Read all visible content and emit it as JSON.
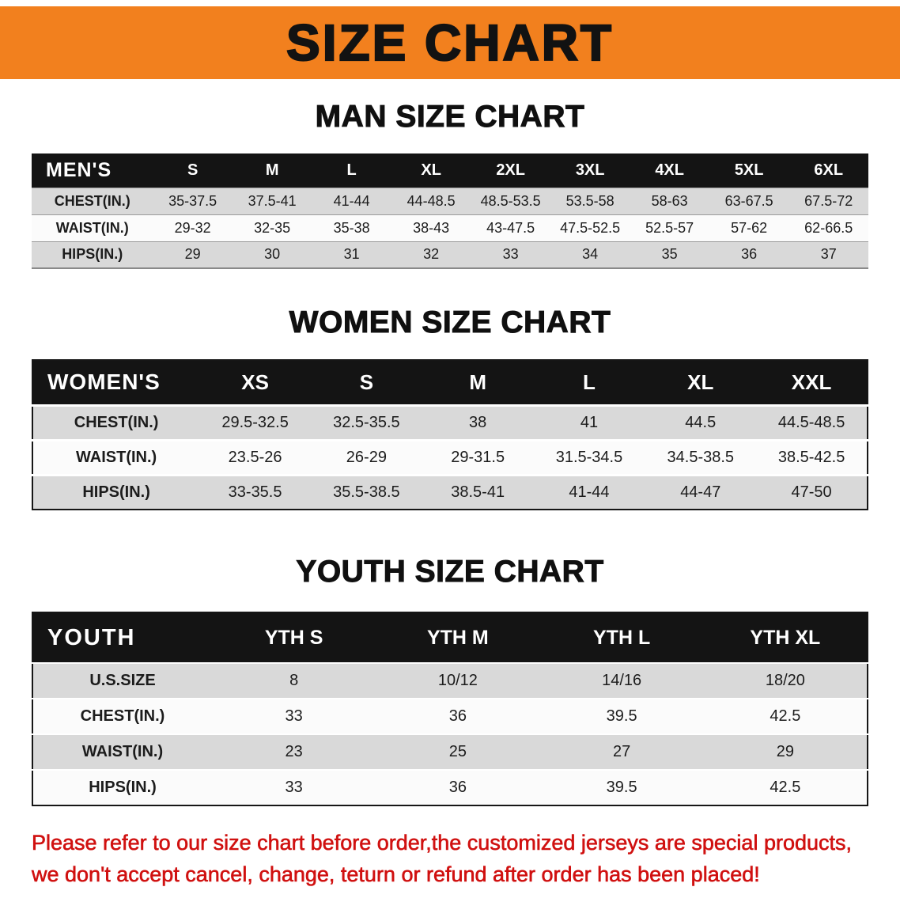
{
  "banner": {
    "title": "SIZE CHART",
    "bg_color": "#f2801e"
  },
  "sections": [
    {
      "id": "men",
      "heading": "MAN SIZE CHART",
      "header": [
        "MEN'S",
        "S",
        "M",
        "L",
        "XL",
        "2XL",
        "3XL",
        "4XL",
        "5XL",
        "6XL"
      ],
      "rows": [
        [
          "CHEST(IN.)",
          "35-37.5",
          "37.5-41",
          "41-44",
          "44-48.5",
          "48.5-53.5",
          "53.5-58",
          "58-63",
          "63-67.5",
          "67.5-72"
        ],
        [
          "WAIST(IN.)",
          "29-32",
          "32-35",
          "35-38",
          "38-43",
          "43-47.5",
          "47.5-52.5",
          "52.5-57",
          "57-62",
          "62-66.5"
        ],
        [
          "HIPS(IN.)",
          "29",
          "30",
          "31",
          "32",
          "33",
          "34",
          "35",
          "36",
          "37"
        ]
      ]
    },
    {
      "id": "women",
      "heading": "WOMEN SIZE CHART",
      "header": [
        "WOMEN'S",
        "XS",
        "S",
        "M",
        "L",
        "XL",
        "XXL"
      ],
      "rows": [
        [
          "CHEST(IN.)",
          "29.5-32.5",
          "32.5-35.5",
          "38",
          "41",
          "44.5",
          "44.5-48.5"
        ],
        [
          "WAIST(IN.)",
          "23.5-26",
          "26-29",
          "29-31.5",
          "31.5-34.5",
          "34.5-38.5",
          "38.5-42.5"
        ],
        [
          "HIPS(IN.)",
          "33-35.5",
          "35.5-38.5",
          "38.5-41",
          "41-44",
          "44-47",
          "47-50"
        ]
      ]
    },
    {
      "id": "youth",
      "heading": "YOUTH SIZE CHART",
      "header": [
        "YOUTH",
        "YTH S",
        "YTH M",
        "YTH L",
        "YTH XL"
      ],
      "rows": [
        [
          "U.S.SIZE",
          "8",
          "10/12",
          "14/16",
          "18/20"
        ],
        [
          "CHEST(IN.)",
          "33",
          "36",
          "39.5",
          "42.5"
        ],
        [
          "WAIST(IN.)",
          "23",
          "25",
          "27",
          "29"
        ],
        [
          "HIPS(IN.)",
          "33",
          "36",
          "39.5",
          "42.5"
        ]
      ]
    }
  ],
  "footer": {
    "text_color": "#d01110",
    "lines": [
      "Please refer to our size chart before order,the customized jerseys are special products,",
      "we don't accept cancel, change, teturn or refund after order has been placed!"
    ]
  }
}
